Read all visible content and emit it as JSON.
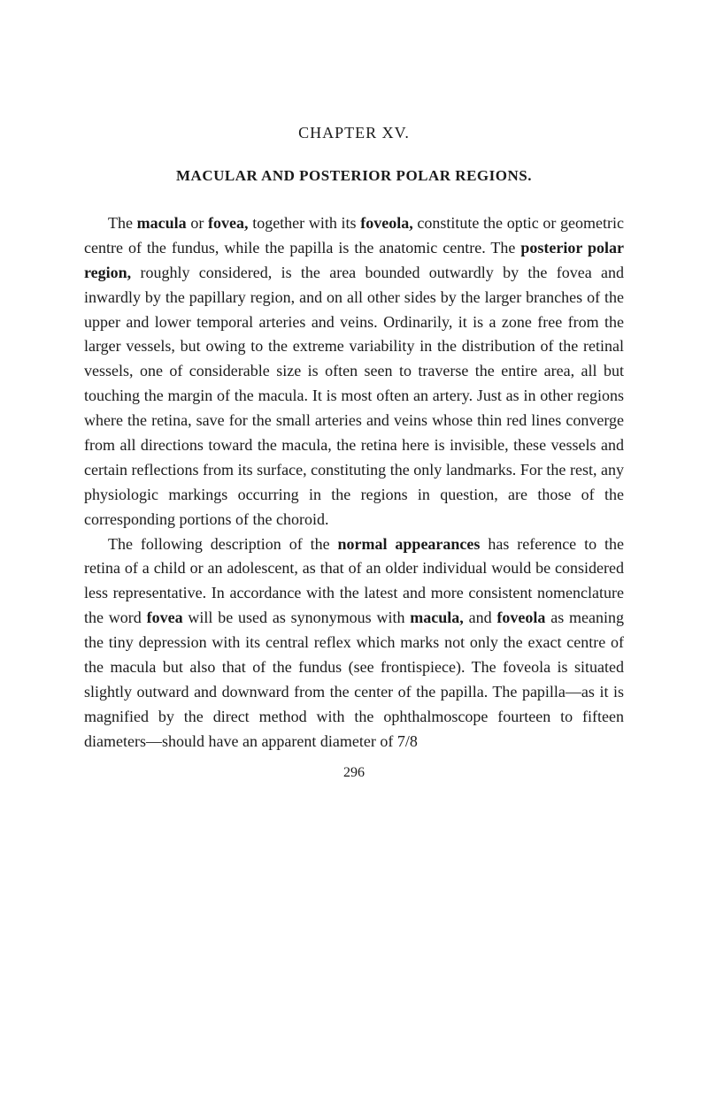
{
  "chapter": {
    "title": "CHAPTER XV."
  },
  "section": {
    "title": "MACULAR AND POSTERIOR POLAR REGIONS."
  },
  "paragraphs": {
    "p1": {
      "t1": "The ",
      "b1": "macula",
      "t2": " or ",
      "b2": "fovea,",
      "t3": " together with its ",
      "b3": "foveola,",
      "t4": " constitute the optic or geometric centre of the fundus, while the papilla is the anatomic centre. The ",
      "b4": "posterior polar region,",
      "t5": " roughly considered, is the area bounded outwardly by the fovea and inwardly by the papillary region, and on all other sides by the larger branches of the upper and lower temporal arteries and veins. Ordinarily, it is a zone free from the larger vessels, but owing to the extreme variability in the distribution of the retinal vessels, one of considerable size is often seen to traverse the entire area, all but touching the margin of the macula. It is most often an artery. Just as in other regions where the retina, save for the small arteries and veins whose thin red lines converge from all directions toward the macula, the retina here is invisible, these vessels and certain reflections from its surface, constituting the only landmarks. For the rest, any physiologic markings occurring in the regions in question, are those of the corresponding portions of the choroid."
    },
    "p2": {
      "t1": "The following description of the ",
      "b1": "normal appearances",
      "t2": " has reference to the retina of a child or an adolescent, as that of an older individual would be considered less representative. In accordance with the latest and more consistent nomenclature the word ",
      "b2": "fovea",
      "t3": " will be used as synonymous with ",
      "b3": "macula,",
      "t4": " and ",
      "b4": "foveola",
      "t5": " as meaning the tiny depression with its central reflex which marks not only the exact centre of the macula but also that of the fundus (see frontispiece). The foveola is situated slightly outward and downward from the center of the papilla. The papilla—as it is magnified by the direct method with the ophthalmoscope fourteen to fifteen diameters—should have an apparent diameter of 7/8"
    }
  },
  "page_number": "296"
}
